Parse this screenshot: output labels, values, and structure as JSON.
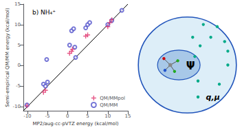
{
  "chart_data": {
    "type": "scatter",
    "title": "b) NH₄⁺",
    "xlabel": "MP2/aug-cc-pVTZ energy (kcal/mol)",
    "ylabel": "Semi-empirical QM/MM energy (kcal/mol)",
    "xlim": [
      -11,
      15
    ],
    "ylim": [
      -11,
      15
    ],
    "xticks": [
      -10,
      -5,
      0,
      5,
      10,
      15
    ],
    "yticks": [
      -10,
      -5,
      0,
      5,
      10,
      15
    ],
    "grid": false,
    "legend": "lower right",
    "series": [
      {
        "type": "line",
        "line_style": "solid",
        "color": "#000000",
        "x": [
          -11,
          15
        ],
        "values": [
          -11,
          15
        ]
      },
      {
        "name": "QM/MMpol",
        "type": "scatter",
        "marker": "plus",
        "color": "#e0306a",
        "x": [
          -10.1,
          -6.0,
          -5.5,
          0.5,
          1.0,
          1.2,
          4.5,
          5.0,
          10.0,
          10.5,
          11.0
        ],
        "values": [
          -9.8,
          -6.5,
          -6.0,
          3.0,
          3.5,
          4.0,
          7.2,
          7.5,
          9.5,
          10.5,
          11.2
        ]
      },
      {
        "name": "QM/MM",
        "type": "scatter",
        "marker": "circle",
        "color": "#5555cc",
        "x": [
          -10.1,
          -6.0,
          -5.5,
          -5.0,
          -5.2,
          0.5,
          1.0,
          1.5,
          1.8,
          2.0,
          4.5,
          5.0,
          5.5,
          10.0,
          11.0,
          13.5
        ],
        "values": [
          -9.6,
          -4.5,
          -5.0,
          -4.0,
          1.5,
          5.0,
          8.5,
          9.0,
          4.5,
          2.0,
          9.2,
          10.0,
          10.5,
          10.0,
          11.0,
          13.5
        ]
      }
    ],
    "annotations": [
      "Ψ",
      "q,μ"
    ]
  }
}
